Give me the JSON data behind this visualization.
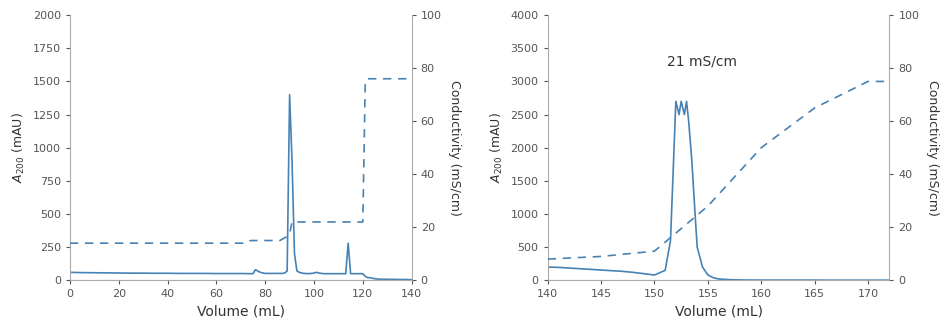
{
  "left": {
    "xlim": [
      0,
      140
    ],
    "ylim_left": [
      0,
      2000
    ],
    "ylim_right": [
      0,
      100
    ],
    "xlabel": "Volume (mL)",
    "ylabel_left": "A₀₂₀₀ (mAU)",
    "ylabel_right": "Conductivity (mS/cm)",
    "annotation": null,
    "line_color": "#4682b4",
    "abs_x": [
      0,
      5,
      10,
      15,
      20,
      25,
      30,
      35,
      40,
      45,
      50,
      55,
      60,
      65,
      70,
      72,
      73,
      74,
      75,
      76,
      77,
      78,
      80,
      85,
      87,
      88,
      89,
      90,
      91,
      92,
      93,
      94,
      95,
      96,
      97,
      98,
      99,
      100,
      101,
      102,
      103,
      104,
      105,
      106,
      107,
      108,
      109,
      110,
      111,
      112,
      113,
      114,
      115,
      116,
      117,
      118,
      119,
      120,
      121,
      122,
      123,
      124,
      125,
      126,
      127,
      128,
      129,
      130,
      131,
      132,
      133,
      134,
      135,
      136,
      137,
      138,
      139,
      140
    ],
    "abs_y": [
      60,
      58,
      57,
      56,
      55,
      54,
      54,
      53,
      53,
      52,
      52,
      52,
      51,
      51,
      51,
      51,
      50,
      50,
      50,
      80,
      70,
      60,
      52,
      52,
      52,
      55,
      70,
      1400,
      900,
      200,
      70,
      60,
      55,
      52,
      51,
      50,
      52,
      55,
      60,
      55,
      52,
      50,
      50,
      50,
      50,
      50,
      50,
      50,
      50,
      50,
      50,
      280,
      50,
      50,
      50,
      50,
      50,
      50,
      30,
      20,
      20,
      15,
      12,
      10,
      8,
      8,
      8,
      8,
      7,
      7,
      7,
      7,
      6,
      6,
      6,
      6,
      5,
      5
    ],
    "cond_x": [
      0,
      10,
      20,
      30,
      40,
      50,
      60,
      70,
      72,
      73,
      74,
      80,
      85,
      86,
      87,
      88,
      89,
      90,
      91,
      92,
      93,
      94,
      95,
      96,
      97,
      98,
      99,
      100,
      105,
      110,
      115,
      120,
      121,
      122,
      123,
      124,
      125,
      126,
      127,
      128,
      129,
      130,
      135,
      140
    ],
    "cond_y": [
      14,
      14,
      14,
      14,
      14,
      14,
      14,
      14,
      14,
      14.5,
      15,
      15,
      15,
      15,
      15.5,
      16,
      16.5,
      17.5,
      22,
      22,
      22,
      22,
      22,
      22,
      22,
      22,
      22,
      22,
      22,
      22,
      22,
      22,
      75,
      76,
      76,
      76,
      76,
      76,
      76,
      76,
      76,
      76,
      76,
      76
    ]
  },
  "right": {
    "xlim": [
      140,
      172
    ],
    "ylim_left": [
      0,
      4000
    ],
    "ylim_right": [
      0,
      100
    ],
    "xlabel": "Volume (mL)",
    "ylabel_left": "A₀₂₀₀ (mAU)",
    "ylabel_right": "Conductivity (mS/cm)",
    "annotation": "21 mS/cm",
    "line_color": "#4682b4",
    "abs_x": [
      140,
      141,
      142,
      143,
      144,
      145,
      146,
      147,
      148,
      149,
      150,
      151,
      151.5,
      152,
      152.3,
      152.5,
      152.8,
      153,
      153.2,
      153.5,
      153.8,
      154,
      154.5,
      155,
      155.5,
      156,
      157,
      158,
      159,
      160,
      161,
      162,
      163,
      164,
      165,
      166,
      167,
      168,
      169,
      170,
      171,
      172
    ],
    "abs_y": [
      200,
      195,
      185,
      175,
      165,
      155,
      145,
      135,
      120,
      100,
      80,
      150,
      600,
      2700,
      2500,
      2700,
      2500,
      2700,
      2400,
      1800,
      1000,
      500,
      200,
      80,
      40,
      20,
      10,
      5,
      4,
      3,
      3,
      3,
      3,
      3,
      3,
      2,
      2,
      2,
      2,
      2,
      2,
      2
    ],
    "cond_x": [
      140,
      145,
      150,
      155,
      160,
      165,
      170,
      172
    ],
    "cond_y": [
      8,
      9,
      11,
      28,
      50,
      65,
      75,
      75
    ]
  }
}
